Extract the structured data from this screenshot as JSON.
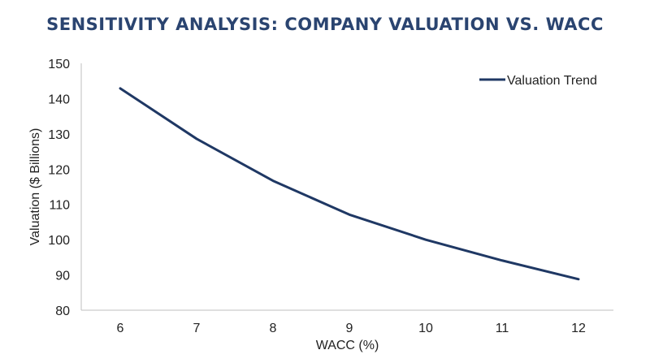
{
  "header": {
    "title": "SENSITIVITY ANALYSIS: COMPANY VALUATION VS. WACC"
  },
  "chart_data": {
    "type": "line",
    "title": "SENSITIVITY ANALYSIS: COMPANY VALUATION VS. WACC",
    "xlabel": "WACC (%)",
    "ylabel": "Valuation ($ Billions)",
    "x": [
      6,
      7,
      8,
      9,
      10,
      11,
      12
    ],
    "xlim": [
      6,
      12
    ],
    "ylim": [
      80,
      150
    ],
    "yticks": [
      80,
      90,
      100,
      110,
      120,
      130,
      140,
      150
    ],
    "grid": false,
    "legend": "top-right",
    "series": [
      {
        "name": "Valuation Trend",
        "color": "#1f3864",
        "values": [
          142.9,
          128.6,
          116.7,
          107.1,
          100.0,
          94.1,
          88.8
        ]
      }
    ]
  }
}
